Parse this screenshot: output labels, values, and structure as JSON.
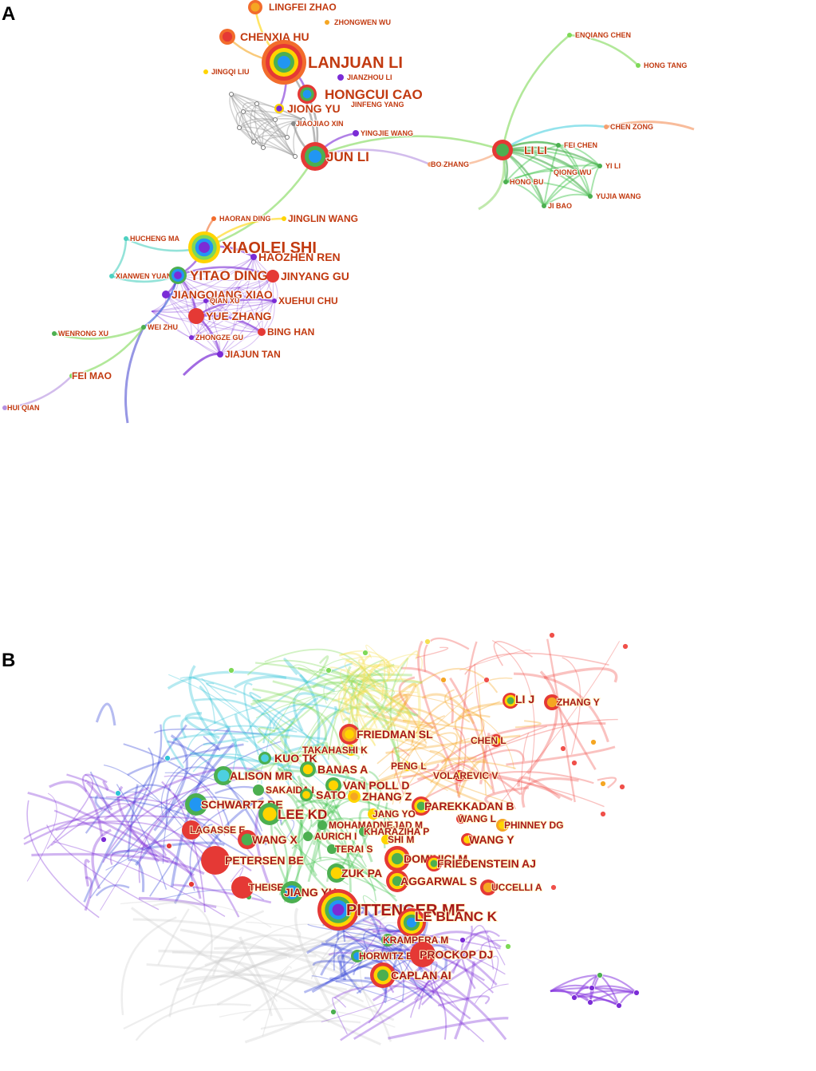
{
  "panels": {
    "a": {
      "letter": "A",
      "nodes": [
        {
          "id": "lingfei_zhao",
          "label": "LINGFEI ZHAO",
          "r": 9,
          "colors": [
            "#f26c2c",
            "#f5a623"
          ],
          "size": "s"
        },
        {
          "id": "zhongwen_wu",
          "label": "ZHONGWEN WU",
          "r": 3,
          "colors": [
            "#f5a623"
          ],
          "size": "xs"
        },
        {
          "id": "chenxia_hu",
          "label": "CHENXIA HU",
          "r": 10,
          "colors": [
            "#f26c2c",
            "#e53935"
          ],
          "size": "m"
        },
        {
          "id": "lanjuan_li",
          "label": "LANJUAN LI",
          "r": 28,
          "colors": [
            "#f26c2c",
            "#e53935",
            "#ffd400",
            "#4caf50",
            "#2196f3"
          ],
          "size": "xl"
        },
        {
          "id": "jingqi_liu",
          "label": "JINGQI LIU",
          "r": 3,
          "colors": [
            "#ffd400"
          ],
          "size": "xs"
        },
        {
          "id": "jianzhou_li",
          "label": "JIANZHOU LI",
          "r": 4,
          "colors": [
            "#7b2cd6"
          ],
          "size": "xs"
        },
        {
          "id": "hongcui_cao",
          "label": "HONGCUI CAO",
          "r": 12,
          "colors": [
            "#e53935",
            "#4caf50",
            "#2196f3"
          ],
          "size": "l"
        },
        {
          "id": "jiong_yu",
          "label": "JIONG YU",
          "r": 6,
          "colors": [
            "#ffd400",
            "#7b2cd6"
          ],
          "size": "m"
        },
        {
          "id": "jinfeng_yang",
          "label": "JINFENG YANG",
          "r": 4,
          "colors": [
            "#7b2cd6"
          ],
          "size": "xs"
        },
        {
          "id": "jiaojiao_xin",
          "label": "JIAOJIAO XIN",
          "r": 3,
          "colors": [
            "#888888"
          ],
          "size": "xs"
        },
        {
          "id": "yingjie_wang",
          "label": "YINGJIE WANG",
          "r": 4,
          "colors": [
            "#7b2cd6"
          ],
          "size": "xs"
        },
        {
          "id": "jun_li",
          "label": "JUN LI",
          "r": 18,
          "colors": [
            "#e53935",
            "#4caf50",
            "#2196f3"
          ],
          "size": "l"
        },
        {
          "id": "enqiang_chen",
          "label": "ENQIANG CHEN",
          "r": 3,
          "colors": [
            "#7ed957"
          ],
          "size": "xs"
        },
        {
          "id": "hong_tang",
          "label": "HONG TANG",
          "r": 3,
          "colors": [
            "#7ed957"
          ],
          "size": "xs"
        },
        {
          "id": "chen_zong",
          "label": "CHEN ZONG",
          "r": 3,
          "colors": [
            "#f5a070"
          ],
          "size": "xs"
        },
        {
          "id": "li_li",
          "label": "LI LI",
          "r": 13,
          "colors": [
            "#e53935",
            "#4caf50"
          ],
          "size": "m"
        },
        {
          "id": "fei_chen",
          "label": "FEI CHEN",
          "r": 3,
          "colors": [
            "#4caf50"
          ],
          "size": "xs"
        },
        {
          "id": "bo_zhang",
          "label": "BO ZHANG",
          "r": 3,
          "colors": [
            "#f5a070"
          ],
          "size": "xs"
        },
        {
          "id": "yi_li",
          "label": "YI LI",
          "r": 3,
          "colors": [
            "#4caf50"
          ],
          "size": "xs"
        },
        {
          "id": "qiong_wu",
          "label": "QIONG WU",
          "r": 3,
          "colors": [
            "#4caf50"
          ],
          "size": "xs"
        },
        {
          "id": "hong_bu",
          "label": "HONG BU",
          "r": 3,
          "colors": [
            "#4caf50"
          ],
          "size": "xs"
        },
        {
          "id": "yujia_wang",
          "label": "YUJIA WANG",
          "r": 3,
          "colors": [
            "#4caf50"
          ],
          "size": "xs"
        },
        {
          "id": "ji_bao",
          "label": "JI BAO",
          "r": 3,
          "colors": [
            "#4caf50"
          ],
          "size": "xs"
        },
        {
          "id": "haoran_ding",
          "label": "HAORAN DING",
          "r": 3,
          "colors": [
            "#f26c2c"
          ],
          "size": "xs"
        },
        {
          "id": "jinglin_wang",
          "label": "JINGLIN WANG",
          "r": 3,
          "colors": [
            "#ffd400"
          ],
          "size": "s"
        },
        {
          "id": "hucheng_ma",
          "label": "HUCHENG MA",
          "r": 3,
          "colors": [
            "#4dd0c0"
          ],
          "size": "xs"
        },
        {
          "id": "xiaolei_shi",
          "label": "XIAOLEI SHI",
          "r": 20,
          "colors": [
            "#ffd400",
            "#7ed957",
            "#2196f3",
            "#7b2cd6"
          ],
          "size": "xl"
        },
        {
          "id": "haozhen_ren",
          "label": "HAOZHEN REN",
          "r": 4,
          "colors": [
            "#7b2cd6"
          ],
          "size": "m"
        },
        {
          "id": "xianwen_yuan",
          "label": "XIANWEN YUAN",
          "r": 3,
          "colors": [
            "#4dd0c0"
          ],
          "size": "xs"
        },
        {
          "id": "yitao_ding",
          "label": "YITAO DING",
          "r": 11,
          "colors": [
            "#4caf50",
            "#2196f3",
            "#7b2cd6"
          ],
          "size": "l"
        },
        {
          "id": "jinyang_gu",
          "label": "JINYANG GU",
          "r": 8,
          "colors": [
            "#e53935"
          ],
          "size": "m"
        },
        {
          "id": "jiangqiang_xiao",
          "label": "JIANGQIANG XIAO",
          "r": 5,
          "colors": [
            "#7b2cd6"
          ],
          "size": "m"
        },
        {
          "id": "qian_xu",
          "label": "QIAN XU",
          "r": 3,
          "colors": [
            "#7b2cd6"
          ],
          "size": "xs"
        },
        {
          "id": "xuehui_chu",
          "label": "XUEHUI CHU",
          "r": 3,
          "colors": [
            "#7b2cd6"
          ],
          "size": "s"
        },
        {
          "id": "yue_zhang",
          "label": "YUE ZHANG",
          "r": 10,
          "colors": [
            "#e53935"
          ],
          "size": "m"
        },
        {
          "id": "bing_han",
          "label": "BING HAN",
          "r": 5,
          "colors": [
            "#e53935"
          ],
          "size": "s"
        },
        {
          "id": "wenrong_xu",
          "label": "WENRONG XU",
          "r": 3,
          "colors": [
            "#4caf50"
          ],
          "size": "xs"
        },
        {
          "id": "wei_zhu",
          "label": "WEI ZHU",
          "r": 3,
          "colors": [
            "#4caf50"
          ],
          "size": "xs"
        },
        {
          "id": "zhongze_gu",
          "label": "ZHONGZE GU",
          "r": 3,
          "colors": [
            "#7b2cd6"
          ],
          "size": "xs"
        },
        {
          "id": "jiajun_tan",
          "label": "JIAJUN TAN",
          "r": 4,
          "colors": [
            "#7b2cd6"
          ],
          "size": "s"
        },
        {
          "id": "fei_mao",
          "label": "FEI MAO",
          "r": 3,
          "colors": [
            "#7ed957"
          ],
          "size": "s"
        },
        {
          "id": "hui_qian",
          "label": "HUI QIAN",
          "r": 3,
          "colors": [
            "#b48fe0"
          ],
          "size": "xs"
        }
      ],
      "edges": [
        [
          "lanjuan_li",
          "chenxia_hu",
          "#f5a623"
        ],
        [
          "lanjuan_li",
          "lingfei_zhao",
          "#ffd400"
        ],
        [
          "lanjuan_li",
          "hongcui_cao",
          "#7b2cd6"
        ],
        [
          "lanjuan_li",
          "jun_li",
          "#888888"
        ],
        [
          "lanjuan_li",
          "jiong_yu",
          "#7b2cd6"
        ],
        [
          "hongcui_cao",
          "jun_li",
          "#888888"
        ],
        [
          "jun_li",
          "jiaojiao_xin",
          "#888888"
        ],
        [
          "jun_li",
          "yingjie_wang",
          "#7b2cd6"
        ],
        [
          "jun_li",
          "li_li",
          "#7ed957"
        ],
        [
          "jun_li",
          "xiaolei_shi",
          "#7ed957"
        ],
        [
          "jun_li",
          "bo_zhang",
          "#b48fe0"
        ],
        [
          "li_li",
          "enqiang_chen",
          "#7ed957"
        ],
        [
          "li_li",
          "chen_zong",
          "#4dd0e0"
        ],
        [
          "li_li",
          "fei_chen",
          "#4caf50"
        ],
        [
          "li_li",
          "yi_li",
          "#4caf50"
        ],
        [
          "li_li",
          "qiong_wu",
          "#4caf50"
        ],
        [
          "li_li",
          "hong_bu",
          "#4caf50"
        ],
        [
          "li_li",
          "yujia_wang",
          "#4caf50"
        ],
        [
          "li_li",
          "ji_bao",
          "#4caf50"
        ],
        [
          "li_li",
          "bo_zhang",
          "#f5a070"
        ],
        [
          "enqiang_chen",
          "hong_tang",
          "#7ed957"
        ],
        [
          "xiaolei_shi",
          "yitao_ding",
          "#7b2cd6"
        ],
        [
          "xiaolei_shi",
          "hucheng_ma",
          "#4dd0c0"
        ],
        [
          "xiaolei_shi",
          "haozhen_ren",
          "#7b2cd6"
        ],
        [
          "xiaolei_shi",
          "haoran_ding",
          "#f26c2c"
        ],
        [
          "xiaolei_shi",
          "jinglin_wang",
          "#ffd400"
        ],
        [
          "yitao_ding",
          "xianwen_yuan",
          "#4dd0c0"
        ],
        [
          "yitao_ding",
          "jinyang_gu",
          "#7b2cd6"
        ],
        [
          "yitao_ding",
          "jiangqiang_xiao",
          "#7b2cd6"
        ],
        [
          "yitao_ding",
          "yue_zhang",
          "#7b2cd6"
        ],
        [
          "yitao_ding",
          "wei_zhu",
          "#2f55d4"
        ],
        [
          "yue_zhang",
          "bing_han",
          "#7b2cd6"
        ],
        [
          "yue_zhang",
          "jiajun_tan",
          "#7b2cd6"
        ],
        [
          "yue_zhang",
          "xuehui_chu",
          "#7b2cd6"
        ],
        [
          "wei_zhu",
          "wenrong_xu",
          "#7ed957"
        ],
        [
          "wei_zhu",
          "fei_mao",
          "#7ed957"
        ],
        [
          "fei_mao",
          "hui_qian",
          "#b48fe0"
        ],
        [
          "hucheng_ma",
          "xianwen_yuan",
          "#4dd0c0"
        ]
      ]
    },
    "b": {
      "letter": "B",
      "nodes": [
        {
          "id": "li_j",
          "label": "LI J",
          "r": 10,
          "colors": [
            "#e53935",
            "#ffd400",
            "#4caf50"
          ],
          "size": "m"
        },
        {
          "id": "zhang_y",
          "label": "ZHANG Y",
          "r": 10,
          "colors": [
            "#e53935",
            "#f5a623"
          ],
          "size": "s"
        },
        {
          "id": "friedman_sl",
          "label": "FRIEDMAN SL",
          "r": 13,
          "colors": [
            "#e53935",
            "#f5a623",
            "#ffd400"
          ],
          "size": "m"
        },
        {
          "id": "takahashi_k",
          "label": "TAKAHASHI K",
          "r": 7,
          "colors": [
            "#ffd400",
            "#4caf50"
          ],
          "size": "s"
        },
        {
          "id": "chen_l",
          "label": "CHEN L",
          "r": 8,
          "colors": [
            "#e53935",
            "#ffd400"
          ],
          "size": "s"
        },
        {
          "id": "kuo_tk",
          "label": "KUO TK",
          "r": 8,
          "colors": [
            "#4caf50",
            "#4dd0e0"
          ],
          "size": "m"
        },
        {
          "id": "banas_a",
          "label": "BANAS A",
          "r": 10,
          "colors": [
            "#4caf50",
            "#ffd400"
          ],
          "size": "m"
        },
        {
          "id": "peng_l",
          "label": "PENG L",
          "r": 6,
          "colors": [
            "#ffd400"
          ],
          "size": "s"
        },
        {
          "id": "alison_mr",
          "label": "ALISON MR",
          "r": 12,
          "colors": [
            "#4caf50",
            "#4dd0e0"
          ],
          "size": "m"
        },
        {
          "id": "van_poll_d",
          "label": "VAN POLL D",
          "r": 10,
          "colors": [
            "#4caf50",
            "#ffd400"
          ],
          "size": "m"
        },
        {
          "id": "volarevic_v",
          "label": "VOLAREVIC V",
          "r": 7,
          "colors": [
            "#e53935",
            "#ffd400"
          ],
          "size": "s"
        },
        {
          "id": "sakaida_i",
          "label": "SAKAIDA I",
          "r": 7,
          "colors": [
            "#4caf50"
          ],
          "size": "s"
        },
        {
          "id": "sato_y",
          "label": "SATO Y",
          "r": 8,
          "colors": [
            "#4caf50",
            "#ffd400"
          ],
          "size": "m"
        },
        {
          "id": "zhang_z",
          "label": "ZHANG Z",
          "r": 8,
          "colors": [
            "#ffd400",
            "#f5a623"
          ],
          "size": "m"
        },
        {
          "id": "schwartz_re",
          "label": "SCHWARTZ RE",
          "r": 14,
          "colors": [
            "#4caf50",
            "#2196f3"
          ],
          "size": "m"
        },
        {
          "id": "parekkadan_b",
          "label": "PAREKKADAN B",
          "r": 12,
          "colors": [
            "#e53935",
            "#ffd400",
            "#4caf50"
          ],
          "size": "m"
        },
        {
          "id": "lee_kd",
          "label": "LEE KD",
          "r": 14,
          "colors": [
            "#4caf50",
            "#ffd400"
          ],
          "size": "l"
        },
        {
          "id": "jang_yo",
          "label": "JANG YO",
          "r": 7,
          "colors": [
            "#ffd400"
          ],
          "size": "s"
        },
        {
          "id": "wang_l",
          "label": "WANG L",
          "r": 6,
          "colors": [
            "#e53935",
            "#f5a623"
          ],
          "size": "s"
        },
        {
          "id": "phinney_dg",
          "label": "PHINNEY DG",
          "r": 8,
          "colors": [
            "#f5a623",
            "#ffd400"
          ],
          "size": "s"
        },
        {
          "id": "lagasse_e",
          "label": "LAGASSE E",
          "r": 12,
          "colors": [
            "#e53935"
          ],
          "size": "s"
        },
        {
          "id": "mohamadnejad_m",
          "label": "MOHAMADNEJAD M",
          "r": 6,
          "colors": [
            "#4caf50"
          ],
          "size": "s"
        },
        {
          "id": "kharaziha_p",
          "label": "KHARAZIHA P",
          "r": 6,
          "colors": [
            "#4caf50"
          ],
          "size": "s"
        },
        {
          "id": "wang_x",
          "label": "WANG X",
          "r": 12,
          "colors": [
            "#e53935",
            "#4caf50"
          ],
          "size": "m"
        },
        {
          "id": "aurich_i",
          "label": "AURICH I",
          "r": 6,
          "colors": [
            "#4caf50"
          ],
          "size": "s"
        },
        {
          "id": "shi_m",
          "label": "SHI M",
          "r": 6,
          "colors": [
            "#ffd400"
          ],
          "size": "s"
        },
        {
          "id": "wang_y",
          "label": "WANG Y",
          "r": 8,
          "colors": [
            "#e53935",
            "#ffd400"
          ],
          "size": "m"
        },
        {
          "id": "terai_s",
          "label": "TERAI S",
          "r": 6,
          "colors": [
            "#4caf50"
          ],
          "size": "s"
        },
        {
          "id": "dominici_m",
          "label": "DOMINICI M",
          "r": 16,
          "colors": [
            "#e53935",
            "#ffd400",
            "#4caf50"
          ],
          "size": "m"
        },
        {
          "id": "petersen_be",
          "label": "PETERSEN BE",
          "r": 18,
          "colors": [
            "#e53935"
          ],
          "size": "m"
        },
        {
          "id": "friedenstein_aj",
          "label": "FRIEDENSTEIN AJ",
          "r": 10,
          "colors": [
            "#e53935",
            "#ffd400",
            "#4caf50"
          ],
          "size": "m"
        },
        {
          "id": "zuk_pa",
          "label": "ZUK PA",
          "r": 12,
          "colors": [
            "#4caf50",
            "#ffd400"
          ],
          "size": "m"
        },
        {
          "id": "aggarwal_s",
          "label": "AGGARWAL S",
          "r": 14,
          "colors": [
            "#e53935",
            "#ffd400",
            "#4caf50"
          ],
          "size": "m"
        },
        {
          "id": "uccelli_a",
          "label": "UCCELLI A",
          "r": 10,
          "colors": [
            "#e53935",
            "#f5a623"
          ],
          "size": "s"
        },
        {
          "id": "theise_nd",
          "label": "THEISE ND",
          "r": 14,
          "colors": [
            "#e53935"
          ],
          "size": "s"
        },
        {
          "id": "jiang_yh",
          "label": "JIANG YH",
          "r": 14,
          "colors": [
            "#4caf50",
            "#2196f3"
          ],
          "size": "m"
        },
        {
          "id": "pittenger_mf",
          "label": "PITTENGER MF",
          "r": 26,
          "colors": [
            "#e53935",
            "#ffd400",
            "#4caf50",
            "#2196f3",
            "#7b2cd6"
          ],
          "size": "xl"
        },
        {
          "id": "le_blanc_k",
          "label": "LE BLANC K",
          "r": 18,
          "colors": [
            "#e53935",
            "#ffd400",
            "#4caf50",
            "#2196f3"
          ],
          "size": "l"
        },
        {
          "id": "krampera_m",
          "label": "KRAMPERA M",
          "r": 8,
          "colors": [
            "#4caf50",
            "#2196f3"
          ],
          "size": "s"
        },
        {
          "id": "horwitz_em",
          "label": "HORWITZ EM",
          "r": 8,
          "colors": [
            "#4caf50",
            "#2196f3"
          ],
          "size": "s"
        },
        {
          "id": "prockop_dj",
          "label": "PROCKOP DJ",
          "r": 16,
          "colors": [
            "#e53935"
          ],
          "size": "m"
        },
        {
          "id": "caplan_ai",
          "label": "CAPLAN AI",
          "r": 16,
          "colors": [
            "#e53935",
            "#ffd400",
            "#4caf50"
          ],
          "size": "m"
        }
      ]
    }
  }
}
